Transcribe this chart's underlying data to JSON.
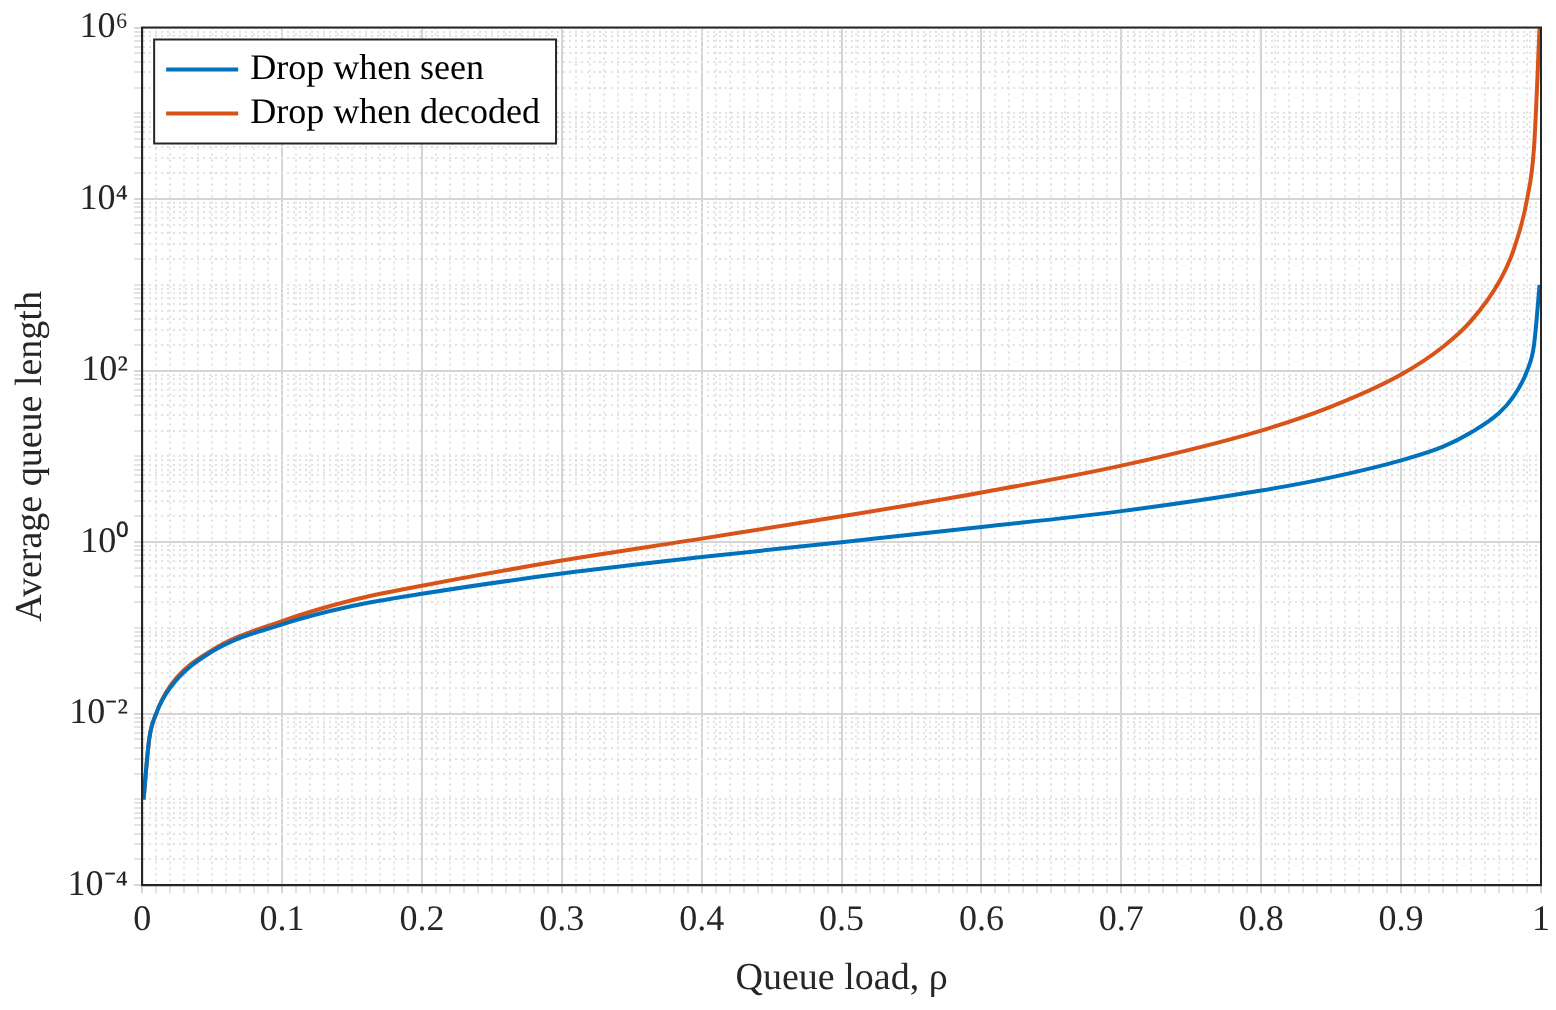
{
  "chart_data": {
    "type": "line",
    "xlabel": "Queue load, ρ",
    "ylabel": "Average queue length",
    "log": "y",
    "grid": true,
    "legend": "top left",
    "line_style": "solid",
    "marker": "none",
    "x": [
      0.001,
      0.005,
      0.01,
      0.02,
      0.05,
      0.1,
      0.15,
      0.2,
      0.3,
      0.4,
      0.5,
      0.6,
      0.7,
      0.8,
      0.85,
      0.9,
      0.93,
      0.95,
      0.97,
      0.98,
      0.99,
      0.995,
      0.999
    ],
    "series": [
      {
        "name": "Drop when seen",
        "color": "#0072bd",
        "values": [
          0.001,
          0.005,
          0.01,
          0.02,
          0.053,
          0.11,
          0.18,
          0.25,
          0.43,
          0.67,
          1,
          1.5,
          2.3,
          4,
          5.7,
          9,
          13,
          19,
          32,
          49,
          99,
          199,
          999
        ]
      },
      {
        "name": "Drop when decoded",
        "color": "#d95319",
        "values": [
          0.001,
          0.005,
          0.01,
          0.021,
          0.055,
          0.12,
          0.21,
          0.31,
          0.61,
          1.1,
          2,
          3.8,
          7.8,
          20,
          38,
          90,
          190,
          380,
          1080,
          2450,
          9900,
          39800,
          999000
        ]
      }
    ],
    "xlim": [
      0,
      1
    ],
    "xticks": [
      0,
      {
        "value": 0.01,
        "label": null
      },
      {
        "value": 0.02,
        "label": null
      },
      {
        "value": 0.03,
        "label": null
      },
      {
        "value": 0.04,
        "label": null
      },
      {
        "value": 0.05,
        "label": null
      },
      {
        "value": 0.06,
        "label": null
      },
      {
        "value": 0.07,
        "label": null
      },
      {
        "value": 0.08,
        "label": null
      },
      {
        "value": 0.09,
        "label": null
      },
      0.1,
      {
        "value": 0.11,
        "label": null
      },
      {
        "value": 0.12,
        "label": null
      },
      {
        "value": 0.13,
        "label": null
      },
      {
        "value": 0.14,
        "label": null
      },
      {
        "value": 0.15,
        "label": null
      },
      {
        "value": 0.16,
        "label": null
      },
      {
        "value": 0.17,
        "label": null
      },
      {
        "value": 0.18,
        "label": null
      },
      {
        "value": 0.19,
        "label": null
      },
      0.2,
      {
        "value": 0.21,
        "label": null
      },
      {
        "value": 0.22,
        "label": null
      },
      {
        "value": 0.23,
        "label": null
      },
      {
        "value": 0.24,
        "label": null
      },
      {
        "value": 0.25,
        "label": null
      },
      {
        "value": 0.26,
        "label": null
      },
      {
        "value": 0.27,
        "label": null
      },
      {
        "value": 0.28,
        "label": null
      },
      {
        "value": 0.29,
        "label": null
      },
      0.3,
      {
        "value": 0.31,
        "label": null
      },
      {
        "value": 0.32,
        "label": null
      },
      {
        "value": 0.33,
        "label": null
      },
      {
        "value": 0.34,
        "label": null
      },
      {
        "value": 0.35,
        "label": null
      },
      {
        "value": 0.36,
        "label": null
      },
      {
        "value": 0.37,
        "label": null
      },
      {
        "value": 0.38,
        "label": null
      },
      {
        "value": 0.39,
        "label": null
      },
      0.4,
      {
        "value": 0.41,
        "label": null
      },
      {
        "value": 0.42,
        "label": null
      },
      {
        "value": 0.43,
        "label": null
      },
      {
        "value": 0.44,
        "label": null
      },
      {
        "value": 0.45,
        "label": null
      },
      {
        "value": 0.46,
        "label": null
      },
      {
        "value": 0.47,
        "label": null
      },
      {
        "value": 0.48,
        "label": null
      },
      {
        "value": 0.49,
        "label": null
      },
      0.5,
      {
        "value": 0.51,
        "label": null
      },
      {
        "value": 0.52,
        "label": null
      },
      {
        "value": 0.53,
        "label": null
      },
      {
        "value": 0.54,
        "label": null
      },
      {
        "value": 0.55,
        "label": null
      },
      {
        "value": 0.56,
        "label": null
      },
      {
        "value": 0.57,
        "label": null
      },
      {
        "value": 0.58,
        "label": null
      },
      {
        "value": 0.59,
        "label": null
      },
      0.6,
      {
        "value": 0.61,
        "label": null
      },
      {
        "value": 0.62,
        "label": null
      },
      {
        "value": 0.63,
        "label": null
      },
      {
        "value": 0.64,
        "label": null
      },
      {
        "value": 0.65,
        "label": null
      },
      {
        "value": 0.66,
        "label": null
      },
      {
        "value": 0.67,
        "label": null
      },
      {
        "value": 0.68,
        "label": null
      },
      {
        "value": 0.69,
        "label": null
      },
      0.7,
      {
        "value": 0.71,
        "label": null
      },
      {
        "value": 0.72,
        "label": null
      },
      {
        "value": 0.73,
        "label": null
      },
      {
        "value": 0.74,
        "label": null
      },
      {
        "value": 0.75,
        "label": null
      },
      {
        "value": 0.76,
        "label": null
      },
      {
        "value": 0.77,
        "label": null
      },
      {
        "value": 0.78,
        "label": null
      },
      {
        "value": 0.79,
        "label": null
      },
      0.8,
      {
        "value": 0.81,
        "label": null
      },
      {
        "value": 0.82,
        "label": null
      },
      {
        "value": 0.83,
        "label": null
      },
      {
        "value": 0.84,
        "label": null
      },
      {
        "value": 0.85,
        "label": null
      },
      {
        "value": 0.86,
        "label": null
      },
      {
        "value": 0.87,
        "label": null
      },
      {
        "value": 0.88,
        "label": null
      },
      {
        "value": 0.89,
        "label": null
      },
      0.9,
      {
        "value": 0.91,
        "label": null
      },
      {
        "value": 0.92,
        "label": null
      },
      {
        "value": 0.93,
        "label": null
      },
      {
        "value": 0.94,
        "label": null
      },
      {
        "value": 0.95,
        "label": null
      },
      {
        "value": 0.96,
        "label": null
      },
      {
        "value": 0.97,
        "label": null
      },
      {
        "value": 0.98,
        "label": null
      },
      {
        "value": 0.99,
        "label": null
      },
      1
    ],
    "ylim": [
      0.0001,
      1000000
    ],
    "yticks": [
      {
        "value": 0.0001,
        "label": "10⁻⁴"
      },
      {
        "value": 0.0002,
        "label": null
      },
      {
        "value": 0.0003,
        "label": null
      },
      {
        "value": 0.0004,
        "label": null
      },
      {
        "value": 0.0005,
        "label": null
      },
      {
        "value": 0.0006,
        "label": null
      },
      {
        "value": 0.0007,
        "label": null
      },
      {
        "value": 0.0008,
        "label": null
      },
      {
        "value": 0.0009,
        "label": null
      },
      {
        "value": 0.001,
        "label": null
      },
      {
        "value": 0.002,
        "label": null
      },
      {
        "value": 0.003,
        "label": null
      },
      {
        "value": 0.004,
        "label": null
      },
      {
        "value": 0.005,
        "label": null
      },
      {
        "value": 0.006,
        "label": null
      },
      {
        "value": 0.007,
        "label": null
      },
      {
        "value": 0.008,
        "label": null
      },
      {
        "value": 0.009,
        "label": null
      },
      {
        "value": 0.01,
        "label": "10⁻²"
      },
      {
        "value": 0.02,
        "label": null
      },
      {
        "value": 0.03,
        "label": null
      },
      {
        "value": 0.04,
        "label": null
      },
      {
        "value": 0.05,
        "label": null
      },
      {
        "value": 0.06,
        "label": null
      },
      {
        "value": 0.07,
        "label": null
      },
      {
        "value": 0.08,
        "label": null
      },
      {
        "value": 0.09,
        "label": null
      },
      {
        "value": 0.1,
        "label": null
      },
      {
        "value": 0.2,
        "label": null
      },
      {
        "value": 0.3,
        "label": null
      },
      {
        "value": 0.4,
        "label": null
      },
      {
        "value": 0.5,
        "label": null
      },
      {
        "value": 0.6,
        "label": null
      },
      {
        "value": 0.7,
        "label": null
      },
      {
        "value": 0.8,
        "label": null
      },
      {
        "value": 0.9,
        "label": null
      },
      {
        "value": 1,
        "label": "10⁰"
      },
      {
        "value": 2,
        "label": null
      },
      {
        "value": 3,
        "label": null
      },
      {
        "value": 4,
        "label": null
      },
      {
        "value": 5,
        "label": null
      },
      {
        "value": 6,
        "label": null
      },
      {
        "value": 7,
        "label": null
      },
      {
        "value": 8,
        "label": null
      },
      {
        "value": 9,
        "label": null
      },
      {
        "value": 10,
        "label": null
      },
      {
        "value": 20,
        "label": null
      },
      {
        "value": 30,
        "label": null
      },
      {
        "value": 40,
        "label": null
      },
      {
        "value": 50,
        "label": null
      },
      {
        "value": 60,
        "label": null
      },
      {
        "value": 70,
        "label": null
      },
      {
        "value": 80,
        "label": null
      },
      {
        "value": 90,
        "label": null
      },
      {
        "value": 100,
        "label": "10²"
      },
      {
        "value": 200,
        "label": null
      },
      {
        "value": 300,
        "label": null
      },
      {
        "value": 400,
        "label": null
      },
      {
        "value": 500,
        "label": null
      },
      {
        "value": 600,
        "label": null
      },
      {
        "value": 700,
        "label": null
      },
      {
        "value": 800,
        "label": null
      },
      {
        "value": 900,
        "label": null
      },
      {
        "value": 1000,
        "label": null
      },
      {
        "value": 2000,
        "label": null
      },
      {
        "value": 3000,
        "label": null
      },
      {
        "value": 4000,
        "label": null
      },
      {
        "value": 5000,
        "label": null
      },
      {
        "value": 6000,
        "label": null
      },
      {
        "value": 7000,
        "label": null
      },
      {
        "value": 8000,
        "label": null
      },
      {
        "value": 9000,
        "label": null
      },
      {
        "value": 10000,
        "label": "10⁴"
      },
      {
        "value": 20000,
        "label": null
      },
      {
        "value": 30000,
        "label": null
      },
      {
        "value": 40000,
        "label": null
      },
      {
        "value": 50000,
        "label": null
      },
      {
        "value": 60000,
        "label": null
      },
      {
        "value": 70000,
        "label": null
      },
      {
        "value": 80000,
        "label": null
      },
      {
        "value": 90000,
        "label": null
      },
      {
        "value": 100000,
        "label": null
      },
      {
        "value": 200000,
        "label": null
      },
      {
        "value": 300000,
        "label": null
      },
      {
        "value": 400000,
        "label": null
      },
      {
        "value": 500000,
        "label": null
      },
      {
        "value": 600000,
        "label": null
      },
      {
        "value": 700000,
        "label": null
      },
      {
        "value": 800000,
        "label": null
      },
      {
        "value": 900000,
        "label": null
      },
      {
        "value": 1000000,
        "label": "10⁶"
      }
    ]
  }
}
